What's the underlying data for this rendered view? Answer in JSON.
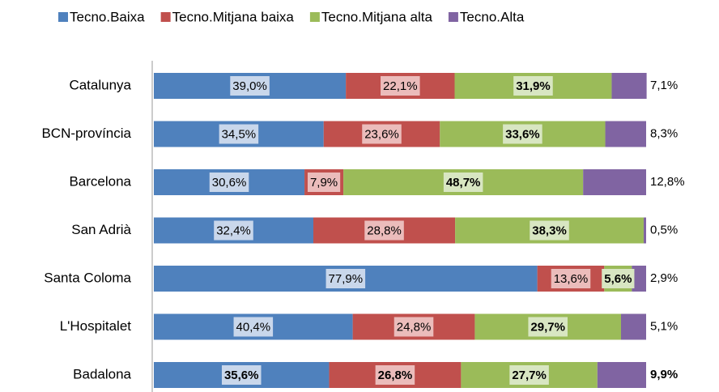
{
  "chart_data": {
    "type": "stacked_barh",
    "categories": [
      "Catalunya",
      "BCN-província",
      "Barcelona",
      "San Adrià",
      "Santa Coloma",
      "L'Hospitalet",
      "Badalona"
    ],
    "series": [
      {
        "name": "Tecno.Baixa",
        "color": "#4f81bd",
        "label_bg": "#c9d7eb",
        "values": [
          39.0,
          34.5,
          30.6,
          32.4,
          77.9,
          40.4,
          35.6
        ],
        "value_labels": [
          "39,0%",
          "34,5%",
          "30,6%",
          "32,4%",
          "77,9%",
          "40,4%",
          "35,6%"
        ]
      },
      {
        "name": "Tecno.Mitjana baixa",
        "color": "#c0504d",
        "label_bg": "#ebbcbb",
        "values": [
          22.1,
          23.6,
          7.9,
          28.8,
          13.6,
          24.8,
          26.8
        ],
        "value_labels": [
          "22,1%",
          "23,6%",
          "7,9%",
          "28,8%",
          "13,6%",
          "24,8%",
          "26,8%"
        ]
      },
      {
        "name": "Tecno.Mitjana alta",
        "color": "#9bbb59",
        "label_bg": "#d8e6c2",
        "values": [
          31.9,
          33.6,
          48.7,
          38.3,
          5.6,
          29.7,
          27.7
        ],
        "value_labels": [
          "31,9%",
          "33,6%",
          "48,7%",
          "38,3%",
          "5,6%",
          "29,7%",
          "27,7%"
        ]
      },
      {
        "name": "Tecno.Alta",
        "color": "#8064a2",
        "label_outside": true,
        "values": [
          7.1,
          8.3,
          12.8,
          0.5,
          2.9,
          5.1,
          9.9
        ],
        "value_labels": [
          "7,1%",
          "8,3%",
          "12,8%",
          "0,5%",
          "2,9%",
          "5,1%",
          "9,9%"
        ]
      }
    ],
    "xlim": [
      0,
      100
    ],
    "bold_series": "Tecno.Mitjana alta",
    "bold_category": "Badalona"
  }
}
